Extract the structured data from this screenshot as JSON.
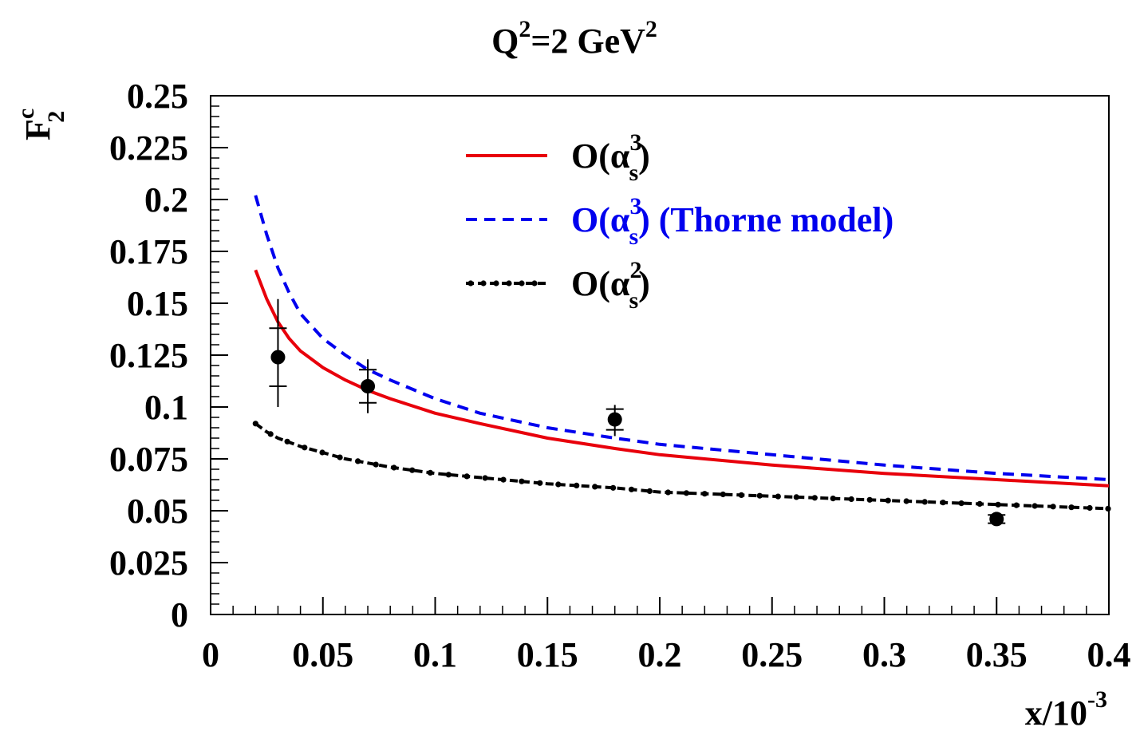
{
  "chart_data": {
    "type": "line",
    "title": {
      "base": "Q",
      "sup1": "2",
      "mid": "=2 GeV",
      "sup2": "2"
    },
    "ylabel": {
      "base": "F",
      "sup": "c",
      "sub": "2"
    },
    "xlabel": {
      "base": "x/10",
      "sup": "-3"
    },
    "xlim": [
      0,
      0.4
    ],
    "ylim": [
      0,
      0.25
    ],
    "x_ticks": [
      "0",
      "0.05",
      "0.1",
      "0.15",
      "0.2",
      "0.25",
      "0.3",
      "0.35",
      "0.4"
    ],
    "y_ticks": [
      "0",
      "0.025",
      "0.05",
      "0.075",
      "0.1",
      "0.125",
      "0.15",
      "0.175",
      "0.2",
      "0.225",
      "0.25"
    ],
    "grid": false,
    "legend_position": "top-center",
    "series": [
      {
        "label": {
          "pre": "O(α",
          "sup": "3",
          "sub": "s",
          "post": ")"
        },
        "color": "#e8000b",
        "style": "solid",
        "x": [
          0.02,
          0.025,
          0.03,
          0.035,
          0.04,
          0.05,
          0.06,
          0.07,
          0.08,
          0.1,
          0.12,
          0.15,
          0.18,
          0.2,
          0.21,
          0.25,
          0.3,
          0.35,
          0.4
        ],
        "y": [
          0.166,
          0.152,
          0.141,
          0.133,
          0.127,
          0.119,
          0.113,
          0.108,
          0.104,
          0.097,
          0.092,
          0.085,
          0.08,
          0.077,
          0.076,
          0.072,
          0.068,
          0.065,
          0.062
        ]
      },
      {
        "label": {
          "pre": "O(α",
          "sup": "3",
          "sub": "s",
          "post": ") (Thorne model)"
        },
        "color": "#0000ee",
        "style": "dashed",
        "x": [
          0.02,
          0.025,
          0.03,
          0.035,
          0.04,
          0.05,
          0.06,
          0.07,
          0.08,
          0.1,
          0.12,
          0.15,
          0.18,
          0.2,
          0.25,
          0.3,
          0.35,
          0.4
        ],
        "y": [
          0.202,
          0.183,
          0.167,
          0.155,
          0.145,
          0.133,
          0.125,
          0.118,
          0.113,
          0.104,
          0.097,
          0.09,
          0.085,
          0.082,
          0.077,
          0.072,
          0.068,
          0.065
        ]
      },
      {
        "label": {
          "pre": "O(α",
          "sup": "2",
          "sub": "s",
          "post": ")"
        },
        "color": "#000000",
        "style": "dash-dot-markers",
        "x": [
          0.02,
          0.025,
          0.03,
          0.04,
          0.05,
          0.06,
          0.07,
          0.08,
          0.1,
          0.12,
          0.15,
          0.18,
          0.2,
          0.25,
          0.3,
          0.35,
          0.4
        ],
        "y": [
          0.092,
          0.088,
          0.085,
          0.081,
          0.078,
          0.075,
          0.073,
          0.071,
          0.068,
          0.066,
          0.063,
          0.061,
          0.059,
          0.057,
          0.055,
          0.053,
          0.051
        ]
      }
    ],
    "data_points": [
      {
        "x": 0.03,
        "y": 0.124,
        "stat": [
          0.11,
          0.138
        ],
        "total": [
          0.1,
          0.152
        ]
      },
      {
        "x": 0.07,
        "y": 0.11,
        "stat": [
          0.102,
          0.118
        ],
        "total": [
          0.097,
          0.123
        ]
      },
      {
        "x": 0.18,
        "y": 0.094,
        "stat": [
          0.089,
          0.099
        ],
        "total": [
          0.086,
          0.101
        ]
      },
      {
        "x": 0.35,
        "y": 0.046,
        "stat": [
          0.044,
          0.048
        ],
        "total": [
          0.043,
          0.049
        ]
      }
    ]
  }
}
